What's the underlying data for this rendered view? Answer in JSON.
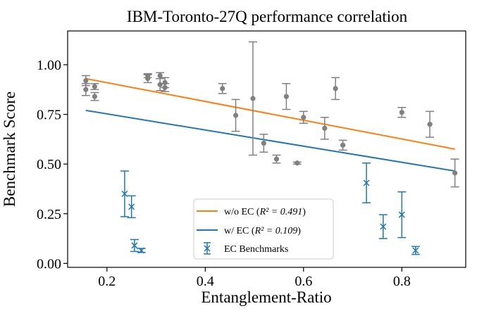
{
  "chart_data": {
    "type": "scatter",
    "title": "IBM-Toronto-27Q performance correlation",
    "xlabel": "Entanglement-Ratio",
    "ylabel": "Benchmark Score",
    "xlim": [
      0.12,
      0.93
    ],
    "ylim": [
      -0.02,
      1.17
    ],
    "x_ticks": [
      0.2,
      0.4,
      0.6,
      0.8
    ],
    "x_tick_labels": [
      "0.2",
      "0.4",
      "0.6",
      "0.8"
    ],
    "y_ticks": [
      0.0,
      0.25,
      0.5,
      0.75,
      1.0
    ],
    "y_tick_labels": [
      "0.00",
      "0.25",
      "0.50",
      "0.75",
      "1.00"
    ],
    "grid": false,
    "legend_position": "lower-right",
    "colors": {
      "orange": "#ff7f0e",
      "blue": "#1f77b4",
      "gray": "#808080"
    },
    "legend": [
      {
        "id": "fit_wo",
        "label": "w/o EC (",
        "math": "R² = 0.491",
        "suffix": ")",
        "marker": "line",
        "color": "#ff7f0e"
      },
      {
        "id": "fit_w",
        "label": "w/ EC (",
        "math": "R² = 0.109",
        "suffix": ")",
        "marker": "line",
        "color": "#1f77b4"
      },
      {
        "id": "ec",
        "label": "EC Benchmarks",
        "math": "",
        "suffix": "",
        "marker": "x-errorbar",
        "color": "#1f77b4"
      }
    ],
    "series": [
      {
        "name": "Benchmarks",
        "marker": "circle",
        "color": "#808080",
        "points": [
          {
            "x": 0.157,
            "y": 0.92,
            "err": 0.025
          },
          {
            "x": 0.157,
            "y": 0.875,
            "err": 0.03
          },
          {
            "x": 0.175,
            "y": 0.89,
            "err": 0.015
          },
          {
            "x": 0.175,
            "y": 0.84,
            "err": 0.02
          },
          {
            "x": 0.283,
            "y": 0.945,
            "err": 0.01
          },
          {
            "x": 0.283,
            "y": 0.93,
            "err": 0.02
          },
          {
            "x": 0.308,
            "y": 0.945,
            "err": 0.015
          },
          {
            "x": 0.308,
            "y": 0.9,
            "err": 0.03
          },
          {
            "x": 0.318,
            "y": 0.91,
            "err": 0.025
          },
          {
            "x": 0.318,
            "y": 0.885,
            "err": 0.02
          },
          {
            "x": 0.435,
            "y": 0.88,
            "err": 0.025
          },
          {
            "x": 0.462,
            "y": 0.745,
            "err": 0.08
          },
          {
            "x": 0.497,
            "y": 0.83,
            "err": 0.285
          },
          {
            "x": 0.519,
            "y": 0.605,
            "err": 0.045
          },
          {
            "x": 0.545,
            "y": 0.525,
            "err": 0.02
          },
          {
            "x": 0.565,
            "y": 0.84,
            "err": 0.065
          },
          {
            "x": 0.587,
            "y": 0.505,
            "err": 0.005
          },
          {
            "x": 0.6,
            "y": 0.735,
            "err": 0.03
          },
          {
            "x": 0.643,
            "y": 0.68,
            "err": 0.055
          },
          {
            "x": 0.665,
            "y": 0.88,
            "err": 0.055
          },
          {
            "x": 0.68,
            "y": 0.595,
            "err": 0.025
          },
          {
            "x": 0.8,
            "y": 0.76,
            "err": 0.025
          },
          {
            "x": 0.857,
            "y": 0.7,
            "err": 0.065
          },
          {
            "x": 0.908,
            "y": 0.455,
            "err": 0.07
          }
        ]
      },
      {
        "name": "EC Benchmarks",
        "marker": "x",
        "color": "#1f77b4",
        "points": [
          {
            "x": 0.236,
            "y": 0.35,
            "err": 0.115
          },
          {
            "x": 0.25,
            "y": 0.285,
            "err": 0.055
          },
          {
            "x": 0.256,
            "y": 0.09,
            "err": 0.03
          },
          {
            "x": 0.27,
            "y": 0.065,
            "err": 0.01
          },
          {
            "x": 0.728,
            "y": 0.405,
            "err": 0.1
          },
          {
            "x": 0.762,
            "y": 0.185,
            "err": 0.06
          },
          {
            "x": 0.8,
            "y": 0.245,
            "err": 0.115
          },
          {
            "x": 0.828,
            "y": 0.065,
            "err": 0.02
          }
        ]
      }
    ],
    "fit_lines": [
      {
        "name": "w/o EC",
        "color": "#ff7f0e",
        "x": [
          0.157,
          0.908
        ],
        "y": [
          0.93,
          0.575
        ]
      },
      {
        "name": "w/ EC",
        "color": "#1f77b4",
        "x": [
          0.157,
          0.908
        ],
        "y": [
          0.77,
          0.465
        ]
      }
    ]
  }
}
